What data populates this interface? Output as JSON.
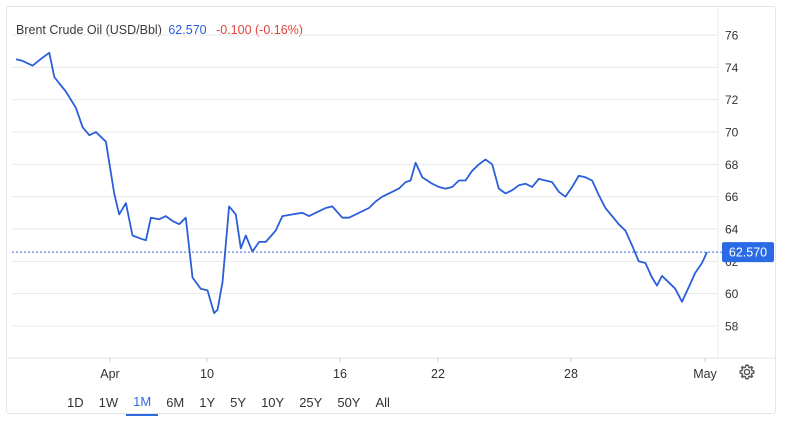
{
  "legend": {
    "name": "Brent Crude Oil (USD/Bbl)",
    "price": "62.570",
    "change": "-0.100 (-0.16%)"
  },
  "range_buttons": [
    "1D",
    "1W",
    "1M",
    "6M",
    "1Y",
    "5Y",
    "10Y",
    "25Y",
    "50Y",
    "All"
  ],
  "active_range": "1M",
  "colors": {
    "line": "#2b5fd9",
    "price_label_bg": "#2b6ae6",
    "change": "#e0453b",
    "grid": "#e8e8e8"
  },
  "chart_data": {
    "type": "line",
    "title": "Brent Crude Oil (USD/Bbl)",
    "x_tick_labels": [
      "Apr",
      "10",
      "16",
      "22",
      "28",
      "May"
    ],
    "y_tick_labels": [
      "58",
      "60",
      "62",
      "64",
      "66",
      "68",
      "70",
      "72",
      "74",
      "76"
    ],
    "ylim": [
      56,
      77.5
    ],
    "last_price_label": "62.570",
    "grid": true,
    "series": [
      {
        "points": [
          [
            0,
            74.5
          ],
          [
            0.2,
            74.4
          ],
          [
            0.5,
            74.1
          ],
          [
            0.8,
            74.6
          ],
          [
            1.0,
            74.9
          ],
          [
            1.15,
            73.4
          ],
          [
            1.3,
            73.0
          ],
          [
            1.5,
            72.5
          ],
          [
            1.8,
            71.5
          ],
          [
            2.0,
            70.3
          ],
          [
            2.2,
            69.8
          ],
          [
            2.4,
            70.0
          ],
          [
            2.7,
            69.4
          ],
          [
            2.95,
            66.2
          ],
          [
            3.1,
            64.9
          ],
          [
            3.3,
            65.6
          ],
          [
            3.5,
            63.6
          ],
          [
            3.75,
            63.4
          ],
          [
            3.9,
            63.3
          ],
          [
            4.05,
            64.7
          ],
          [
            4.3,
            64.6
          ],
          [
            4.5,
            64.8
          ],
          [
            4.7,
            64.5
          ],
          [
            4.9,
            64.3
          ],
          [
            5.1,
            64.7
          ],
          [
            5.3,
            61.0
          ],
          [
            5.55,
            60.3
          ],
          [
            5.75,
            60.2
          ],
          [
            5.95,
            58.8
          ],
          [
            6.05,
            59.0
          ],
          [
            6.2,
            60.7
          ],
          [
            6.4,
            65.4
          ],
          [
            6.6,
            64.9
          ],
          [
            6.75,
            62.8
          ],
          [
            6.9,
            63.6
          ],
          [
            7.1,
            62.6
          ],
          [
            7.3,
            63.2
          ],
          [
            7.5,
            63.2
          ],
          [
            7.8,
            63.9
          ],
          [
            8.0,
            64.8
          ],
          [
            8.3,
            64.9
          ],
          [
            8.6,
            65.0
          ],
          [
            8.8,
            64.8
          ],
          [
            9.0,
            65.0
          ],
          [
            9.3,
            65.3
          ],
          [
            9.5,
            65.4
          ],
          [
            9.8,
            64.7
          ],
          [
            10.0,
            64.7
          ],
          [
            10.3,
            65.0
          ],
          [
            10.6,
            65.3
          ],
          [
            10.8,
            65.7
          ],
          [
            11.0,
            66.0
          ],
          [
            11.3,
            66.3
          ],
          [
            11.5,
            66.5
          ],
          [
            11.7,
            66.9
          ],
          [
            11.85,
            67.0
          ],
          [
            12.0,
            68.1
          ],
          [
            12.2,
            67.2
          ],
          [
            12.5,
            66.8
          ],
          [
            12.7,
            66.6
          ],
          [
            12.9,
            66.5
          ],
          [
            13.1,
            66.6
          ],
          [
            13.3,
            67.0
          ],
          [
            13.5,
            67.0
          ],
          [
            13.7,
            67.6
          ],
          [
            13.9,
            68.0
          ],
          [
            14.1,
            68.3
          ],
          [
            14.3,
            68.0
          ],
          [
            14.5,
            66.5
          ],
          [
            14.7,
            66.2
          ],
          [
            14.9,
            66.4
          ],
          [
            15.1,
            66.7
          ],
          [
            15.3,
            66.8
          ],
          [
            15.5,
            66.6
          ],
          [
            15.7,
            67.1
          ],
          [
            15.9,
            67.0
          ],
          [
            16.1,
            66.9
          ],
          [
            16.3,
            66.3
          ],
          [
            16.5,
            66.0
          ],
          [
            16.7,
            66.6
          ],
          [
            16.9,
            67.3
          ],
          [
            17.1,
            67.2
          ],
          [
            17.3,
            67.0
          ],
          [
            17.5,
            66.1
          ],
          [
            17.7,
            65.3
          ],
          [
            17.9,
            64.8
          ],
          [
            18.1,
            64.3
          ],
          [
            18.3,
            63.9
          ],
          [
            18.5,
            63.0
          ],
          [
            18.7,
            62.0
          ],
          [
            18.9,
            61.9
          ],
          [
            19.1,
            61.0
          ],
          [
            19.25,
            60.5
          ],
          [
            19.4,
            61.1
          ],
          [
            19.6,
            60.7
          ],
          [
            19.8,
            60.3
          ],
          [
            20.0,
            59.5
          ],
          [
            20.2,
            60.4
          ],
          [
            20.4,
            61.3
          ],
          [
            20.6,
            61.9
          ],
          [
            20.75,
            62.57
          ]
        ]
      }
    ]
  }
}
